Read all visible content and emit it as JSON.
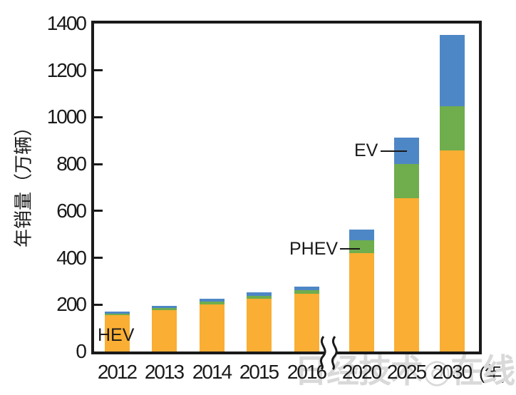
{
  "watermark": "日经技术◎在线!",
  "colors": {
    "axis": "#1a1a1a",
    "watermark": "#d9d9d9",
    "hev": "#FAAE33",
    "phev": "#6FAD4D",
    "ev": "#4E87C5"
  },
  "chart_data": {
    "type": "bar",
    "stacked": true,
    "title": "",
    "ylabel": "年销量（万辆）",
    "x_unit_label": "(年)",
    "categories": [
      "2012",
      "2013",
      "2014",
      "2015",
      "2016",
      "2020",
      "2025",
      "2030"
    ],
    "series": [
      {
        "name": "HEV",
        "color": "#FAAE33",
        "values": [
          155,
          178,
          202,
          224,
          248,
          420,
          655,
          858
        ]
      },
      {
        "name": "PHEV",
        "color": "#6FAD4D",
        "values": [
          6,
          9,
          11,
          13,
          14,
          55,
          145,
          190
        ]
      },
      {
        "name": "EV",
        "color": "#4E87C5",
        "values": [
          9,
          9,
          13,
          15,
          16,
          45,
          112,
          302
        ]
      }
    ],
    "totals": [
      170,
      196,
      226,
      252,
      278,
      520,
      912,
      1350
    ],
    "ylim": [
      0,
      1400
    ],
    "yticks": [
      0,
      200,
      400,
      600,
      800,
      1000,
      1200,
      1400
    ],
    "grid": false,
    "legend": "none",
    "axis_break_between": [
      "2016",
      "2020"
    ],
    "annotations": [
      {
        "label": "HEV",
        "target": "2012 HEV segment"
      },
      {
        "label": "PHEV",
        "target": "2020 PHEV segment"
      },
      {
        "label": "EV",
        "target": "2025 EV segment"
      }
    ]
  }
}
